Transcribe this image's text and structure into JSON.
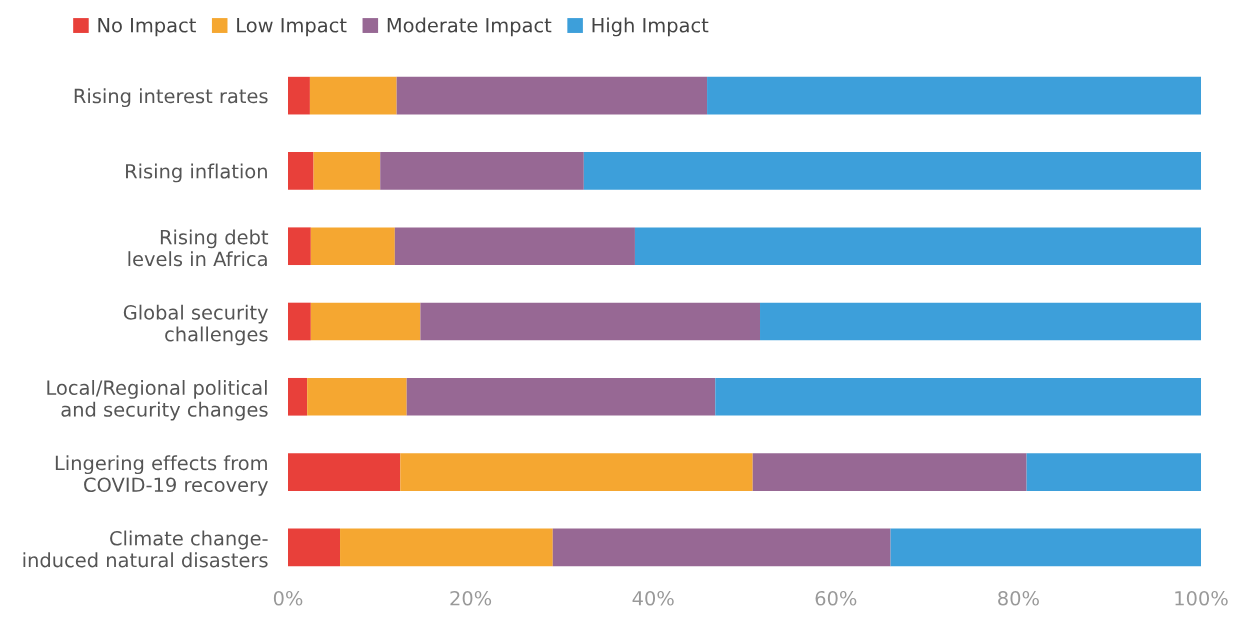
{
  "chart_data": {
    "type": "bar",
    "orientation": "horizontal",
    "stacked": true,
    "legend": "top left",
    "grid": false,
    "categories": [
      "Rising interest rates",
      "Rising inflation",
      "Rising debt\nlevels in Africa",
      "Global security\nchallenges",
      "Local/Regional political\nand security changes",
      "Lingering effects from\nCOVID-19 recovery",
      "Climate change-\ninduced natural disasters"
    ],
    "xlim": [
      0,
      100
    ],
    "xticks": [
      {
        "value": 0,
        "label": "0%"
      },
      {
        "value": 20,
        "label": "20%"
      },
      {
        "value": 40,
        "label": "40%"
      },
      {
        "value": 60,
        "label": "60%"
      },
      {
        "value": 80,
        "label": "80%"
      },
      {
        "value": 100,
        "label": "100%"
      }
    ],
    "series": [
      {
        "name": "No Impact",
        "color": "#e8403a",
        "values": [
          2.4,
          2.8,
          2.5,
          2.5,
          2.1,
          12.3,
          5.7
        ]
      },
      {
        "name": "Low Impact",
        "color": "#f5a731",
        "values": [
          9.5,
          7.3,
          9.2,
          12.0,
          10.9,
          38.6,
          23.3
        ]
      },
      {
        "name": "Moderate Impact",
        "color": "#976894",
        "values": [
          34.0,
          22.3,
          26.3,
          37.2,
          33.8,
          30.0,
          37.0
        ]
      },
      {
        "name": "High Impact",
        "color": "#3d9fda",
        "values": [
          54.1,
          67.6,
          62.0,
          48.3,
          53.2,
          19.1,
          34.0
        ]
      }
    ]
  }
}
